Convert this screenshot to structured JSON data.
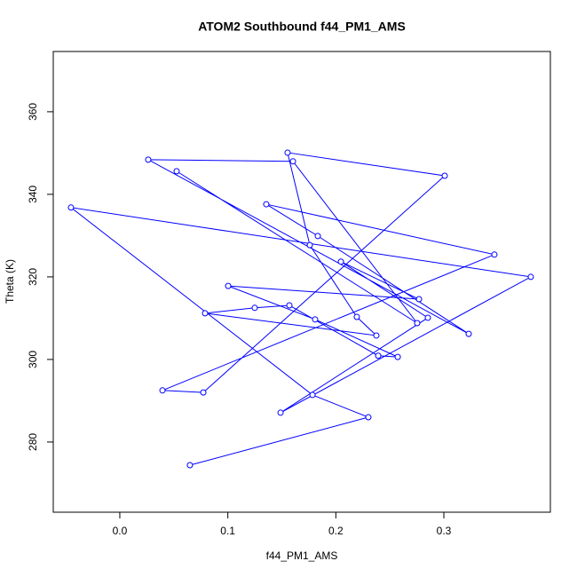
{
  "chart_data": {
    "type": "line",
    "title": "ATOM2 Southbound f44_PM1_AMS",
    "x_label": "f44_PM1_AMS",
    "y_label": "Theta (K)",
    "color": "#0000ff",
    "markers": true,
    "x": [
      0.0649,
      0.2301,
      0.1784,
      -0.0452,
      0.3805,
      0.1488,
      0.2852,
      0.2047,
      0.277,
      0.1003,
      0.1808,
      0.2573,
      0.2392,
      0.157,
      0.1249,
      0.0789,
      0.2375,
      0.2194,
      0.1759,
      0.1553,
      0.3008,
      0.0773,
      0.0395,
      0.3468,
      0.1356,
      0.1833,
      0.323,
      0.0263,
      0.1603,
      0.2753,
      0.0526
    ],
    "values": [
      274.4,
      286.0,
      291.4,
      336.8,
      320.0,
      287.1,
      310.1,
      323.7,
      314.6,
      317.8,
      309.7,
      300.6,
      300.9,
      313.1,
      312.5,
      311.2,
      305.8,
      310.3,
      327.7,
      350.1,
      344.5,
      292.0,
      292.5,
      325.4,
      337.6,
      329.9,
      306.2,
      348.4,
      348.0,
      308.8,
      345.6
    ],
    "xlim": [
      -0.0616,
      0.3986
    ],
    "ylim": [
      263.0,
      374.6
    ],
    "xticks": [
      {
        "value": 0,
        "label": "0.0"
      },
      0.1,
      0.2,
      0.3
    ],
    "yticks": [
      280,
      300,
      320,
      340,
      360
    ]
  }
}
